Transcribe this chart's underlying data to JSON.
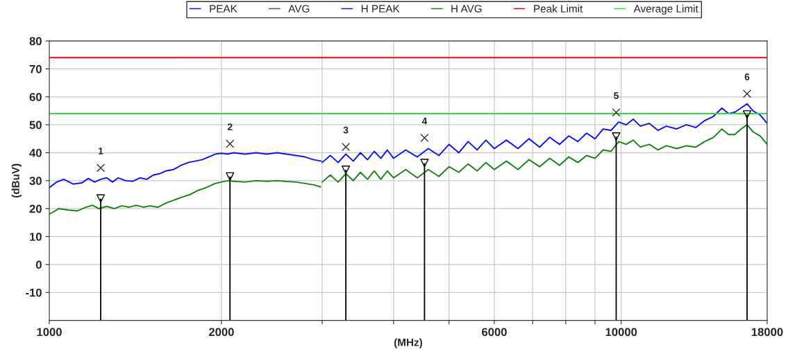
{
  "chart_data": {
    "type": "line",
    "xlabel": "(MHz)",
    "ylabel": "(dBuV)",
    "log": "x",
    "grid": true,
    "legend": "top",
    "xlim": [
      1000,
      18000
    ],
    "xticks": [
      1000,
      2000,
      {
        "value": 3000,
        "label": null
      },
      {
        "value": 4000,
        "label": null
      },
      {
        "value": 5000,
        "label": null
      },
      6000,
      {
        "value": 7000,
        "label": null
      },
      {
        "value": 8000,
        "label": null
      },
      {
        "value": 9000,
        "label": null
      },
      10000,
      18000
    ],
    "ylim": [
      -20,
      80
    ],
    "yticks": [
      -10,
      0,
      10,
      20,
      30,
      40,
      50,
      60,
      70,
      80
    ],
    "series": [
      {
        "name": "PEAK",
        "color": "#1010ff",
        "x": [
          1000,
          1030,
          1060,
          1100,
          1140,
          1170,
          1200,
          1230,
          1260,
          1290,
          1320,
          1360,
          1400,
          1440,
          1480,
          1520,
          1560,
          1600,
          1650,
          1700,
          1750,
          1800,
          1850,
          1900,
          1950,
          2000,
          2050,
          2100,
          2200,
          2300,
          2400,
          2500,
          2600,
          2700,
          2800,
          2900,
          2990
        ],
        "values": [
          27.5,
          29.5,
          30.5,
          28.8,
          29.2,
          30.8,
          29.5,
          30.5,
          31,
          29.5,
          31,
          30,
          29.8,
          31,
          30.5,
          32,
          32.5,
          33.5,
          34,
          35.5,
          36.5,
          37,
          37.5,
          38.5,
          39.5,
          39.8,
          39.5,
          40,
          39.5,
          40,
          39.5,
          40,
          39.5,
          39,
          38.5,
          37.5,
          37
        ]
      },
      {
        "name": "AVG",
        "color": "#1a801a",
        "x": [
          1000,
          1040,
          1080,
          1120,
          1160,
          1190,
          1220,
          1260,
          1300,
          1340,
          1380,
          1420,
          1460,
          1500,
          1550,
          1600,
          1650,
          1700,
          1760,
          1820,
          1880,
          1950,
          2000,
          2050,
          2100,
          2200,
          2300,
          2400,
          2500,
          2600,
          2700,
          2800,
          2900,
          2980
        ],
        "values": [
          18,
          20,
          19.5,
          19.2,
          20.5,
          21.2,
          20,
          20.8,
          20,
          21,
          20.5,
          21.2,
          20.5,
          21,
          20.5,
          22,
          23,
          24,
          25,
          26.5,
          27.5,
          29,
          29.5,
          30,
          29.8,
          29.5,
          30,
          29.8,
          30,
          29.7,
          29.5,
          29,
          28.5,
          27.8
        ]
      },
      {
        "name": "H PEAK",
        "color": "#1010ff",
        "x": [
          3000,
          3100,
          3200,
          3300,
          3400,
          3500,
          3600,
          3700,
          3800,
          3900,
          4000,
          4200,
          4400,
          4600,
          4800,
          5000,
          5200,
          5400,
          5600,
          5800,
          6000,
          6300,
          6600,
          6900,
          7200,
          7500,
          7800,
          8100,
          8400,
          8700,
          9000,
          9300,
          9600,
          9900,
          10200,
          10500,
          10800,
          11200,
          11600,
          12000,
          12500,
          13000,
          13500,
          14000,
          14500,
          15000,
          15400,
          15800,
          16200,
          16600,
          17000,
          17500,
          18000
        ],
        "values": [
          36.5,
          39,
          36.5,
          39.5,
          37,
          40,
          37.5,
          40.5,
          38,
          41,
          38,
          41,
          38.5,
          41.5,
          39,
          43,
          40,
          44,
          41,
          44.5,
          41.5,
          44.5,
          41.5,
          45,
          42,
          45.5,
          43,
          46,
          44,
          47,
          45,
          48.5,
          48,
          51,
          50,
          52,
          49.5,
          50.5,
          48,
          49.5,
          48.5,
          50,
          49,
          51.5,
          53,
          56,
          54,
          54.5,
          56,
          57.5,
          55,
          53.5,
          50.5
        ]
      },
      {
        "name": "H AVG",
        "color": "#1a801a",
        "x": [
          3000,
          3100,
          3200,
          3300,
          3400,
          3500,
          3600,
          3700,
          3800,
          3900,
          4000,
          4200,
          4400,
          4600,
          4800,
          5000,
          5200,
          5400,
          5600,
          5800,
          6000,
          6300,
          6600,
          6900,
          7200,
          7500,
          7800,
          8100,
          8400,
          8700,
          9000,
          9300,
          9600,
          9900,
          10200,
          10500,
          10800,
          11200,
          11600,
          12000,
          12500,
          13000,
          13500,
          14000,
          14500,
          15000,
          15400,
          15800,
          16200,
          16600,
          17000,
          17500,
          18000
        ],
        "values": [
          29.5,
          32,
          29.5,
          32.5,
          30,
          33,
          30.5,
          33.5,
          30.5,
          33.5,
          31,
          34,
          31,
          34,
          31.5,
          35,
          33,
          36,
          33.5,
          36.5,
          34,
          37,
          34,
          37.5,
          35,
          38,
          35.5,
          38.5,
          36.5,
          39,
          38,
          41,
          40.5,
          44,
          43,
          44.5,
          42,
          43,
          41,
          42.5,
          41.5,
          42.5,
          42,
          44,
          45.5,
          48.5,
          46.5,
          46.5,
          48.5,
          50,
          47.5,
          46,
          43
        ]
      },
      {
        "name": "Peak Limit",
        "color": "#ff0000",
        "x": [
          1000,
          18000
        ],
        "values": [
          74,
          74
        ]
      },
      {
        "name": "Average Limit",
        "color": "#33dd33",
        "x": [
          1000,
          18000
        ],
        "values": [
          54,
          54
        ]
      },
      {
        "type": "scatter",
        "marker": "triangle",
        "color": "#000000",
        "x": [
          1230,
          2070,
          3300,
          4530,
          9800,
          16600
        ],
        "values": [
          23.6,
          31.5,
          33.9,
          36.3,
          45.8,
          53.7
        ],
        "errors": [
          [
            -20,
            23.6
          ],
          [
            -20,
            31.5
          ],
          [
            -20,
            33.9
          ],
          [
            -20,
            36.3
          ],
          [
            -20,
            45.8
          ],
          [
            -20,
            53.7
          ]
        ]
      },
      {
        "type": "scatter",
        "marker": "cross",
        "color": "#333333",
        "x": [
          1230,
          2070,
          3300,
          4530,
          9800,
          16600
        ],
        "values": [
          34.6,
          43.2,
          42.1,
          45.3,
          54.4,
          61.1
        ]
      }
    ],
    "annotations": [
      {
        "text": "1",
        "x": 1230,
        "y": 34.6
      },
      {
        "text": "2",
        "x": 2070,
        "y": 43.2
      },
      {
        "text": "3",
        "x": 3300,
        "y": 42.1
      },
      {
        "text": "4",
        "x": 4530,
        "y": 45.3
      },
      {
        "text": "5",
        "x": 9800,
        "y": 54.4
      },
      {
        "text": "6",
        "x": 16600,
        "y": 61.1
      }
    ]
  }
}
